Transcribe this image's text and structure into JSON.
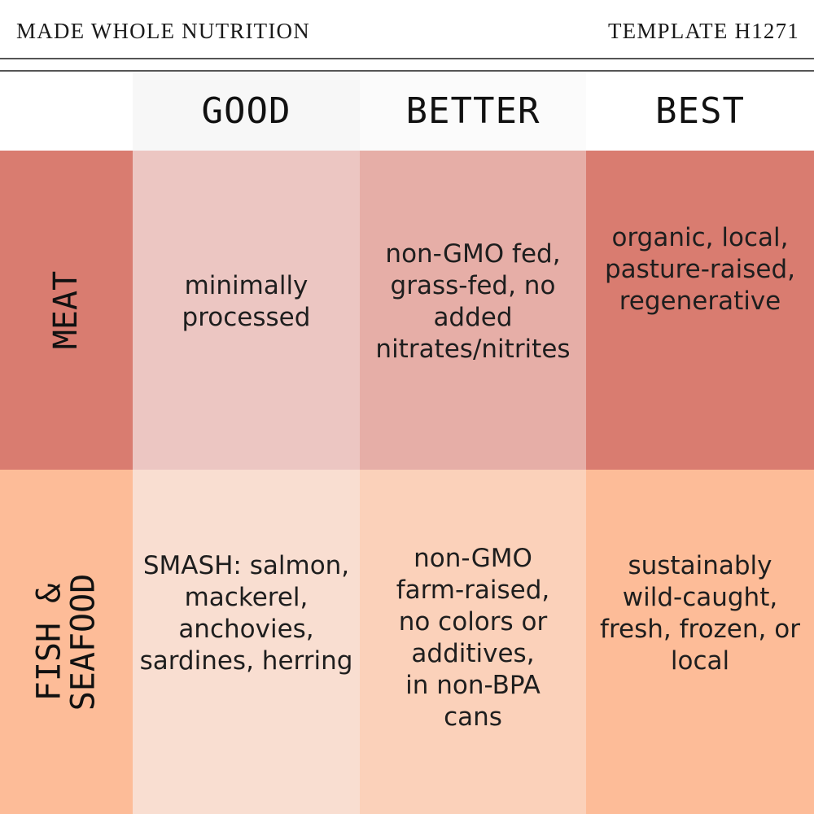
{
  "header": {
    "brand": "MADE WHOLE NUTRITION",
    "template_id": "TEMPLATE H1271"
  },
  "columns": [
    "GOOD",
    "BETTER",
    "BEST"
  ],
  "rows": [
    {
      "label": "MEAT",
      "cells": [
        "minimally\nprocessed",
        "non-GMO fed,\ngrass-fed, no\nadded\nnitrates/nitrites",
        "organic, local,\npasture-raised,\nregenerative"
      ]
    },
    {
      "label": "FISH &\nSEAFOOD",
      "cells": [
        "SMASH: salmon,\nmackerel,\nanchovies,\nsardines, herring",
        "non-GMO\nfarm-raised,\nno colors or\nadditives,\nin non-BPA\ncans",
        "sustainably\nwild-caught,\nfresh, frozen, or\nlocal"
      ]
    }
  ],
  "colors": {
    "header_good_bg": "#f7f7f7",
    "header_better_bg": "#fbfbfb",
    "header_best_bg": "#ffffff",
    "meat_label_bg": "#d97c70",
    "meat_good_bg": "#ecc6c2",
    "meat_better_bg": "#e6aea7",
    "meat_best_bg": "#d97c70",
    "fish_label_bg": "#fdbc98",
    "fish_good_bg": "#f9ded1",
    "fish_better_bg": "#fbd1ba",
    "fish_best_bg": "#fdbc98"
  }
}
